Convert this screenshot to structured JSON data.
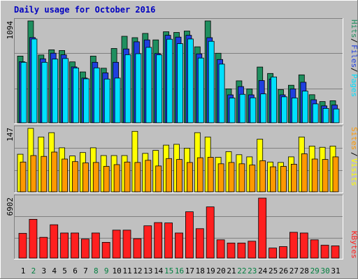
{
  "window": {
    "title": "Daily usage for October 2016"
  },
  "colors": {
    "background": "#c0c0c0",
    "plot_bg": "#c0c0c0",
    "title": "#0000c0",
    "hits": "#1f8f5f",
    "files": "#1f3fdf",
    "pages": "#00e0ff",
    "visits": "#ffff00",
    "sites": "#ff9900",
    "kbytes": "#ff1f1f",
    "day_weekday": "#000000",
    "day_weekend": "#007f3f"
  },
  "chart_data": [
    {
      "type": "bar",
      "title": "Daily usage for October 2016",
      "panel": "hits-files-pages",
      "ylabel_max": "1094",
      "ylim": [
        0,
        1094
      ],
      "categories": [
        "1",
        "2",
        "3",
        "4",
        "5",
        "6",
        "7",
        "8",
        "9",
        "10",
        "11",
        "12",
        "13",
        "14",
        "15",
        "16",
        "17",
        "18",
        "19",
        "20",
        "21",
        "22",
        "23",
        "24",
        "25",
        "26",
        "27",
        "28",
        "29",
        "30",
        "31"
      ],
      "weekend_days": [
        "2",
        "8",
        "9",
        "15",
        "16",
        "22",
        "23",
        "29",
        "30"
      ],
      "legend": [
        "Hits",
        "Files",
        "Pages"
      ],
      "series": [
        {
          "name": "Hits",
          "values": [
            716,
            1094,
            728,
            784,
            776,
            654,
            546,
            716,
            586,
            798,
            929,
            914,
            960,
            890,
            978,
            970,
            985,
            816,
            1094,
            747,
            364,
            450,
            364,
            599,
            530,
            356,
            403,
            515,
            301,
            228,
            237
          ]
        },
        {
          "name": "Files",
          "values": [
            656,
            916,
            687,
            748,
            730,
            600,
            480,
            650,
            536,
            650,
            793,
            870,
            890,
            744,
            940,
            920,
            940,
            740,
            914,
            680,
            300,
            389,
            300,
            453,
            470,
            300,
            364,
            435,
            247,
            181,
            190
          ]
        },
        {
          "name": "Pages",
          "values": [
            650,
            900,
            650,
            684,
            690,
            589,
            472,
            590,
            470,
            480,
            731,
            742,
            810,
            730,
            898,
            850,
            900,
            695,
            875,
            630,
            266,
            306,
            268,
            310,
            492,
            279,
            267,
            340,
            203,
            154,
            148
          ]
        }
      ]
    },
    {
      "type": "bar",
      "panel": "visits-sites",
      "ylabel_max": "147",
      "ylim": [
        0,
        147
      ],
      "categories": [
        "1",
        "2",
        "3",
        "4",
        "5",
        "6",
        "7",
        "8",
        "9",
        "10",
        "11",
        "12",
        "13",
        "14",
        "15",
        "16",
        "17",
        "18",
        "19",
        "20",
        "21",
        "22",
        "23",
        "24",
        "25",
        "26",
        "27",
        "28",
        "29",
        "30",
        "31"
      ],
      "legend": [
        "Visits",
        "Sites"
      ],
      "series": [
        {
          "name": "Visits",
          "values": [
            87,
            147,
            127,
            137,
            102,
            83,
            91,
            102,
            84,
            84,
            84,
            140,
            89,
            96,
            108,
            110,
            101,
            137,
            127,
            80,
            93,
            86,
            81,
            122,
            69,
            68,
            81,
            127,
            106,
            103,
            106
          ]
        },
        {
          "name": "Sites",
          "values": [
            69,
            84,
            82,
            92,
            76,
            70,
            67,
            68,
            59,
            63,
            69,
            68,
            73,
            60,
            77,
            75,
            68,
            79,
            80,
            65,
            68,
            65,
            62,
            72,
            58,
            59,
            64,
            88,
            76,
            75,
            81
          ]
        }
      ]
    },
    {
      "type": "bar",
      "panel": "kbytes",
      "ylabel_max": "6902",
      "ylim": [
        0,
        6902
      ],
      "categories": [
        "1",
        "2",
        "3",
        "4",
        "5",
        "6",
        "7",
        "8",
        "9",
        "10",
        "11",
        "12",
        "13",
        "14",
        "15",
        "16",
        "17",
        "18",
        "19",
        "20",
        "21",
        "22",
        "23",
        "24",
        "25",
        "26",
        "27",
        "28",
        "29",
        "30",
        "31"
      ],
      "legend": [
        "KBytes"
      ],
      "series": [
        {
          "name": "KBytes",
          "values": [
            2848,
            4459,
            2394,
            3839,
            2890,
            2890,
            2187,
            2890,
            1817,
            3220,
            3220,
            2229,
            3715,
            4087,
            4046,
            2890,
            5326,
            3385,
            5893,
            2105,
            1734,
            1734,
            1941,
            6902,
            1156,
            1321,
            2972,
            2890,
            2105,
            1486,
            1404
          ]
        }
      ]
    }
  ]
}
